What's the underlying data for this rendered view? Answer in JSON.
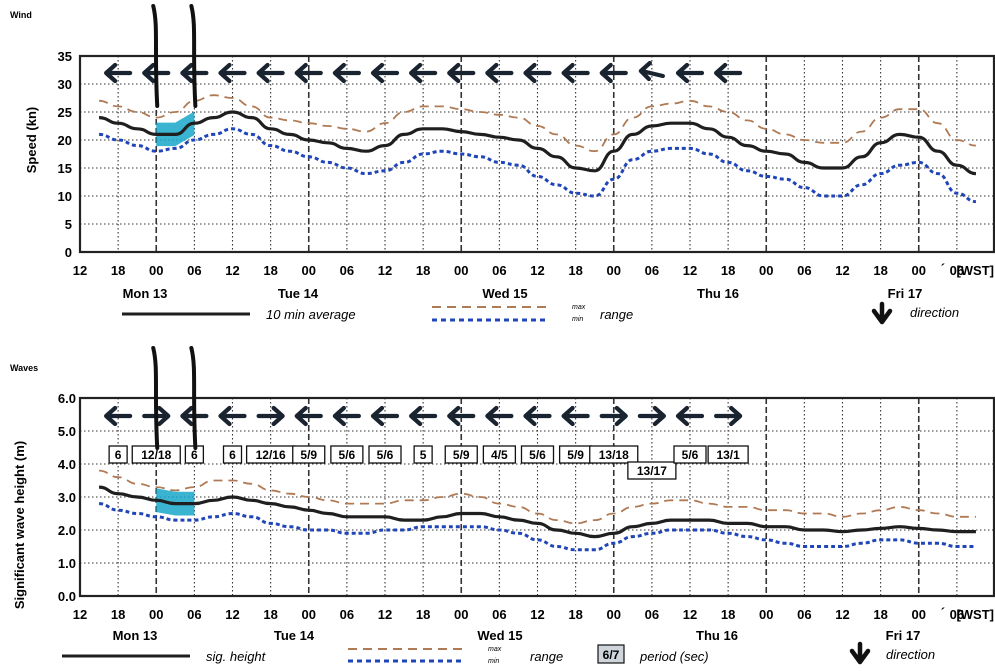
{
  "wind": {
    "title": "Wind",
    "ylabel": "Speed (kn)",
    "legend": {
      "line": "10 min average",
      "max": "max",
      "min": "min",
      "range": "range",
      "direction": "direction"
    }
  },
  "waves": {
    "title": "Waves",
    "ylabel": "Significant wave height (m)",
    "legend": {
      "line": "sig. height",
      "max": "max",
      "min": "min",
      "range": "range",
      "period_box": "6/7",
      "period": "period (sec)",
      "direction": "direction"
    }
  },
  "tz_label": "[WST]",
  "hour_ticks": [
    "12",
    "18",
    "00",
    "06",
    "12",
    "18",
    "00",
    "06",
    "12",
    "18",
    "00",
    "06",
    "12",
    "18",
    "00",
    "06",
    "12",
    "18",
    "00",
    "06",
    "12",
    "18",
    "00",
    "06"
  ],
  "day_labels": [
    "Mon 13",
    "Tue 14",
    "Wed 15",
    "Thu 16",
    "Fri 17"
  ],
  "colors": {
    "line": "#1f1f1f",
    "max": "#b07a55",
    "min": "#1f45b8",
    "highlight": "#17a7c9",
    "arrow": "#1a2330"
  },
  "chart_data": [
    {
      "type": "line",
      "title": "Wind",
      "ylabel": "Speed (kn)",
      "ylim": [
        0,
        35
      ],
      "yticks": [
        0,
        5,
        10,
        15,
        20,
        25,
        30,
        35
      ],
      "x": [
        15,
        18,
        21,
        24,
        27,
        30,
        33,
        36,
        39,
        42,
        45,
        48,
        51,
        54,
        57,
        60,
        63,
        66,
        69,
        72,
        75,
        78,
        81,
        84,
        87,
        90,
        93,
        96,
        99,
        102,
        105,
        108,
        111,
        114,
        117,
        120,
        123,
        126,
        129,
        132,
        135,
        138,
        141,
        144,
        147,
        150,
        153
      ],
      "xlim": [
        12,
        156
      ],
      "x_units": "hours from 00:00 Mon 13 [WST]",
      "series": [
        {
          "name": "10 min average",
          "values": [
            24,
            23,
            22,
            21,
            21,
            23,
            24,
            25,
            24,
            22,
            21,
            20,
            19.5,
            18.5,
            18,
            19,
            21,
            22,
            22,
            21.5,
            21,
            20.5,
            20,
            18.5,
            17,
            15,
            14.5,
            18,
            21,
            22.5,
            23,
            23,
            22,
            20.5,
            19,
            18,
            17.5,
            16,
            15,
            15,
            17,
            19.5,
            21,
            20.5,
            18,
            15.5,
            14
          ]
        },
        {
          "name": "max",
          "values": [
            27,
            26,
            25,
            24,
            25,
            27,
            28,
            27.5,
            26,
            24,
            23.5,
            23,
            22.5,
            22,
            21.5,
            23,
            25,
            26,
            26,
            25.5,
            25,
            24.5,
            24,
            22.5,
            21,
            19,
            18,
            21,
            24,
            26,
            26.5,
            27,
            26,
            25,
            23.5,
            22,
            21,
            20,
            19.5,
            19.5,
            21.5,
            24,
            25.5,
            25.5,
            23,
            20,
            19
          ]
        },
        {
          "name": "min",
          "values": [
            21,
            20,
            19,
            18,
            18.5,
            20,
            21,
            22,
            21,
            19,
            18,
            17,
            16,
            15,
            14,
            14.5,
            16,
            17.5,
            18,
            17.5,
            17,
            16,
            15.5,
            13.5,
            12,
            10.5,
            10,
            13,
            16.5,
            18,
            18.5,
            18.5,
            17.5,
            16,
            14.5,
            13.5,
            13,
            11.5,
            10,
            10,
            12,
            14,
            15.5,
            16,
            14,
            10.5,
            9
          ]
        }
      ],
      "highlight": {
        "x": [
          0,
          6
        ]
      },
      "direction": [
        "W",
        "W",
        "W",
        "W",
        "W",
        "W",
        "W",
        "W",
        "W",
        "W",
        "W",
        "W",
        "W",
        "W",
        "WNW",
        "W",
        "W"
      ]
    },
    {
      "type": "line",
      "title": "Waves",
      "ylabel": "Significant wave height (m)",
      "ylim": [
        0,
        6
      ],
      "yticks": [
        "0.0",
        "1.0",
        "2.0",
        "3.0",
        "4.0",
        "5.0",
        "6.0"
      ],
      "x": [
        15,
        18,
        21,
        24,
        27,
        30,
        33,
        36,
        39,
        42,
        45,
        48,
        51,
        54,
        57,
        60,
        63,
        66,
        69,
        72,
        75,
        78,
        81,
        84,
        87,
        90,
        93,
        96,
        99,
        102,
        105,
        108,
        111,
        114,
        117,
        120,
        123,
        126,
        129,
        132,
        135,
        138,
        141,
        144,
        147,
        150,
        153
      ],
      "xlim": [
        12,
        156
      ],
      "x_units": "hours from 00:00 Mon 13 [WST]",
      "series": [
        {
          "name": "sig. height",
          "values": [
            3.3,
            3.1,
            3.0,
            2.9,
            2.8,
            2.8,
            2.9,
            3.0,
            2.9,
            2.8,
            2.7,
            2.6,
            2.5,
            2.4,
            2.4,
            2.4,
            2.3,
            2.3,
            2.4,
            2.5,
            2.5,
            2.4,
            2.3,
            2.2,
            2.0,
            1.9,
            1.8,
            1.9,
            2.1,
            2.2,
            2.3,
            2.3,
            2.3,
            2.2,
            2.2,
            2.1,
            2.1,
            2.0,
            2.0,
            1.95,
            2.0,
            2.05,
            2.1,
            2.05,
            2.0,
            1.95,
            1.95
          ]
        },
        {
          "name": "max",
          "values": [
            3.8,
            3.6,
            3.4,
            3.3,
            3.2,
            3.3,
            3.5,
            3.5,
            3.4,
            3.2,
            3.1,
            3.0,
            2.9,
            2.8,
            2.8,
            2.8,
            2.9,
            2.9,
            3.0,
            3.1,
            3.0,
            2.8,
            2.7,
            2.5,
            2.3,
            2.2,
            2.3,
            2.5,
            2.7,
            2.8,
            2.9,
            2.9,
            2.8,
            2.7,
            2.7,
            2.6,
            2.6,
            2.5,
            2.5,
            2.4,
            2.5,
            2.6,
            2.7,
            2.6,
            2.5,
            2.4,
            2.4
          ]
        },
        {
          "name": "min",
          "values": [
            2.8,
            2.6,
            2.5,
            2.4,
            2.3,
            2.3,
            2.4,
            2.5,
            2.4,
            2.2,
            2.1,
            2.0,
            2.0,
            1.9,
            1.9,
            2.0,
            2.0,
            2.1,
            2.1,
            2.1,
            2.1,
            2.0,
            1.9,
            1.7,
            1.5,
            1.4,
            1.4,
            1.6,
            1.8,
            1.9,
            2.0,
            2.0,
            2.0,
            1.9,
            1.8,
            1.7,
            1.6,
            1.5,
            1.5,
            1.5,
            1.6,
            1.7,
            1.7,
            1.6,
            1.6,
            1.5,
            1.5
          ]
        }
      ],
      "highlight": {
        "x": [
          0,
          6
        ]
      },
      "direction": [
        "W",
        "E",
        "W",
        "W",
        "E",
        "W",
        "W",
        "W",
        "W",
        "W",
        "W",
        "W",
        "W",
        "E",
        "E",
        "W",
        "E"
      ],
      "period_labels": [
        "6",
        "12/18",
        "6",
        "6",
        "12/16",
        "5/9",
        "5/6",
        "5/6",
        "5",
        "5/9",
        "4/5",
        "5/6",
        "5/9",
        "13/18",
        "13/17",
        "5/6",
        "13/1"
      ]
    }
  ]
}
